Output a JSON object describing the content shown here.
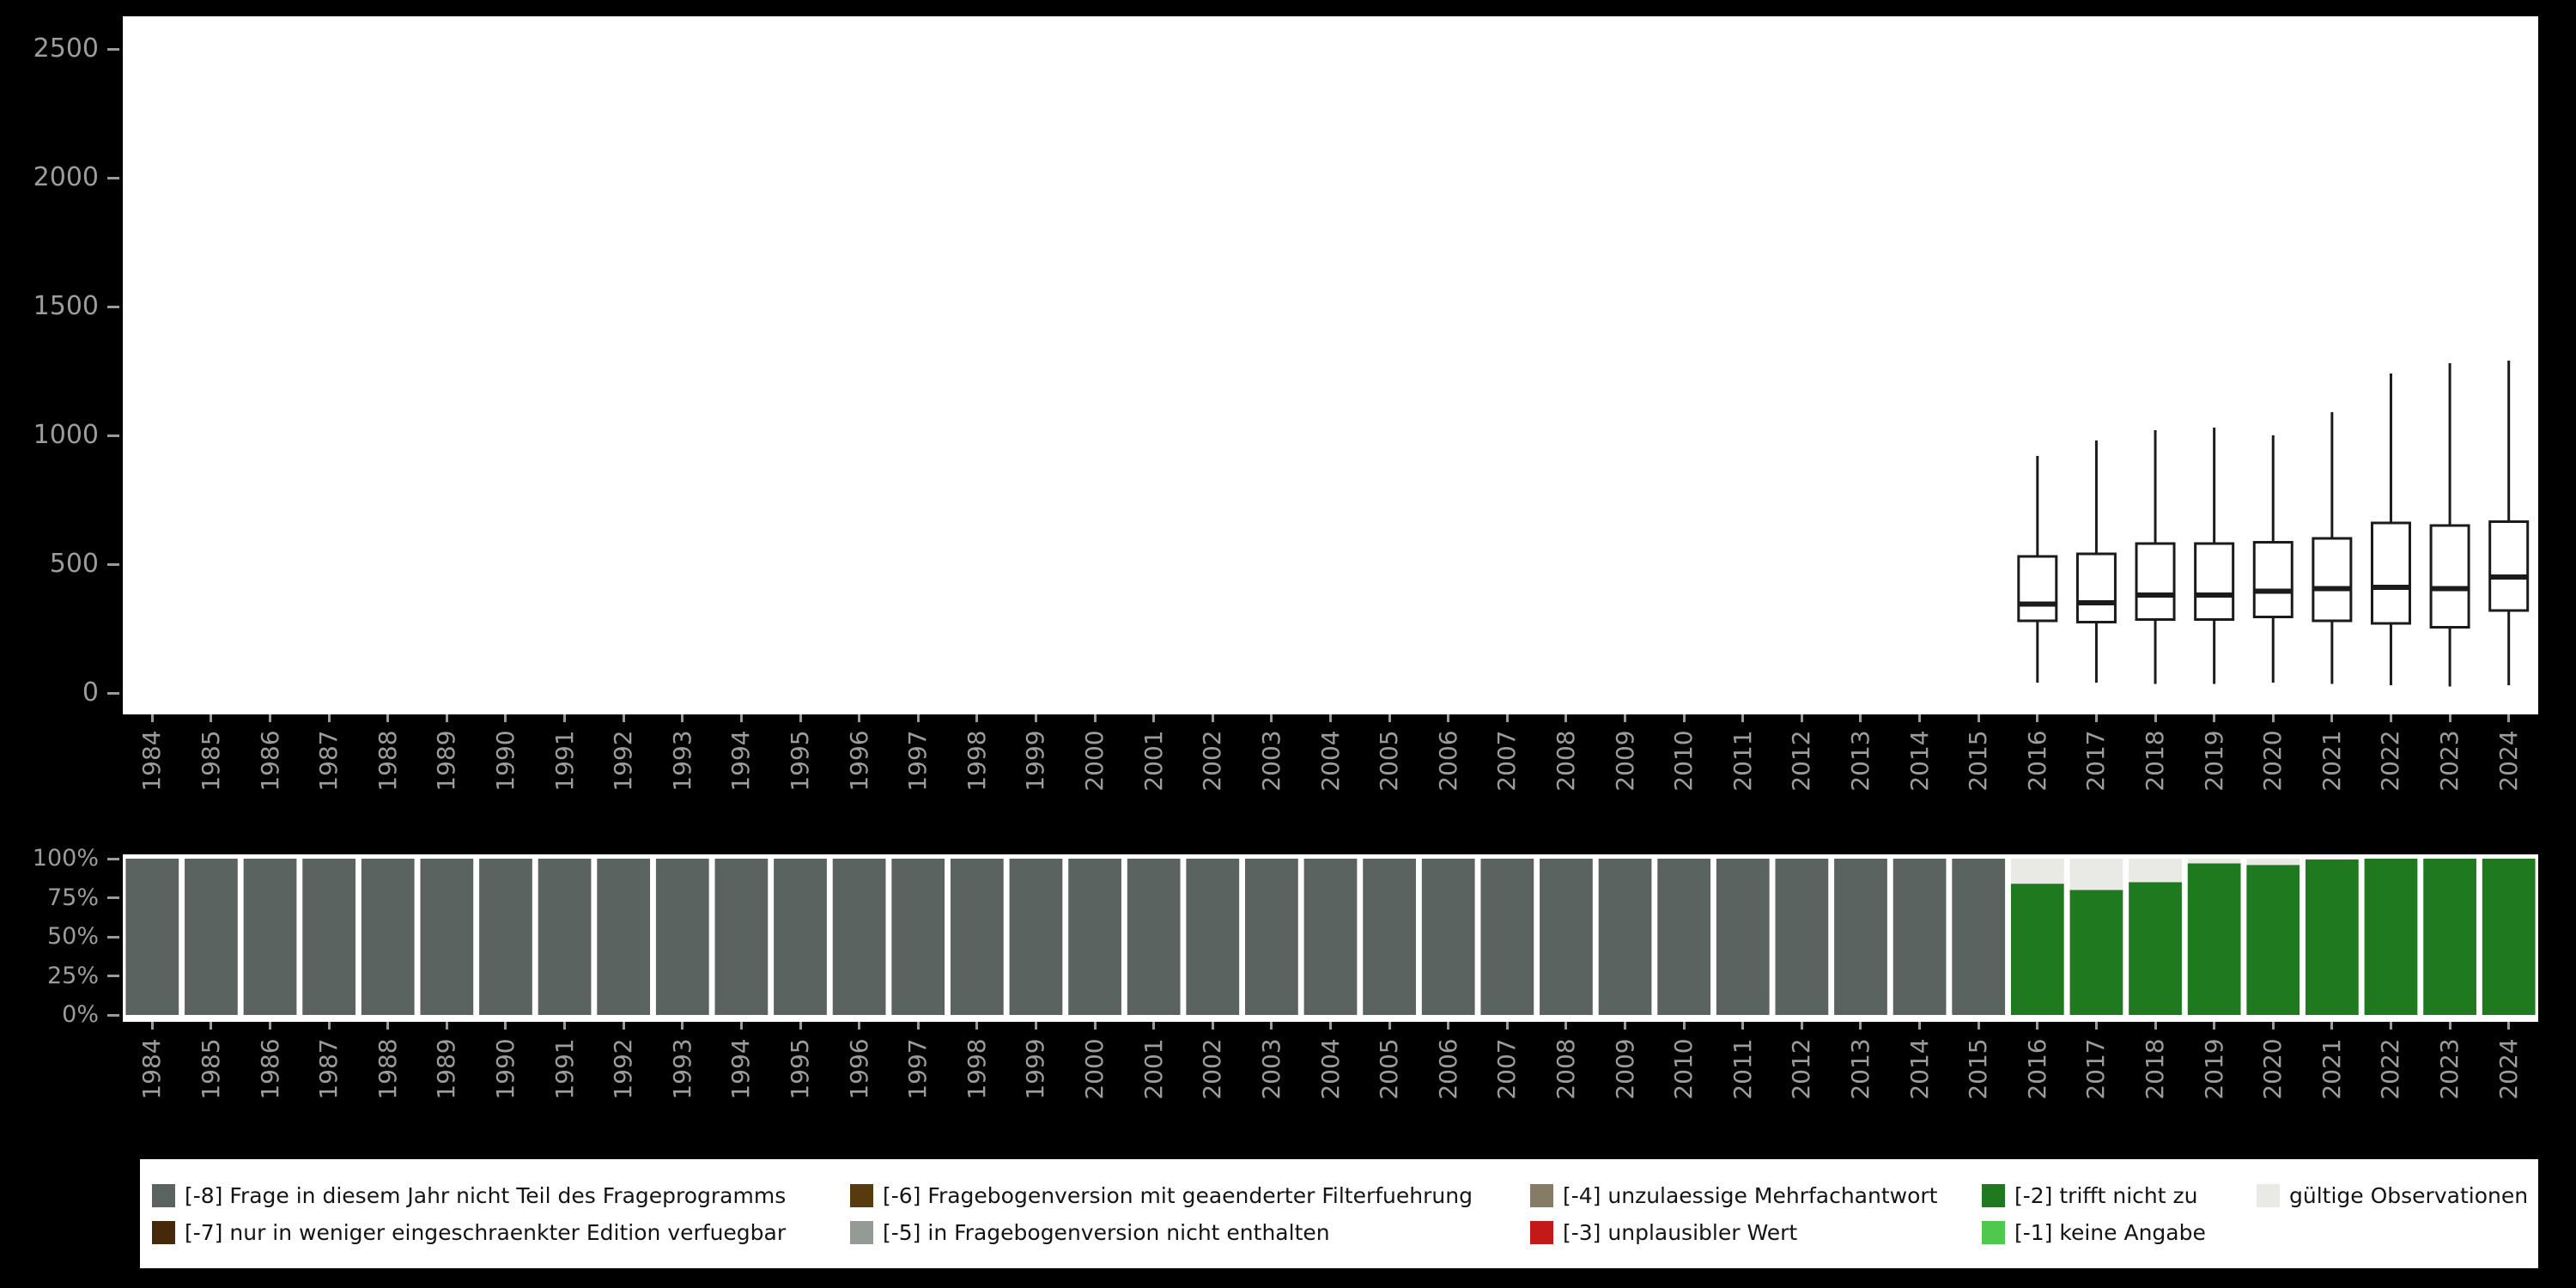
{
  "page": {
    "background": "#000000",
    "panel_background": "#ffffff",
    "axis_text_color": "#9c9c9c"
  },
  "chart_data": [
    {
      "type": "boxplot",
      "title": "",
      "xlabel": "",
      "ylabel": "",
      "ylim": [
        0,
        2500
      ],
      "yticks": [
        0,
        500,
        1000,
        1500,
        2000,
        2500
      ],
      "grid": false,
      "box_color": "#1b1b1b",
      "box_fill": "#ffffff",
      "categories": [
        "1984",
        "1985",
        "1986",
        "1987",
        "1988",
        "1989",
        "1990",
        "1991",
        "1992",
        "1993",
        "1994",
        "1995",
        "1996",
        "1997",
        "1998",
        "1999",
        "2000",
        "2001",
        "2002",
        "2003",
        "2004",
        "2005",
        "2006",
        "2007",
        "2008",
        "2009",
        "2010",
        "2011",
        "2012",
        "2013",
        "2014",
        "2015",
        "2016",
        "2017",
        "2018",
        "2019",
        "2020",
        "2021",
        "2022",
        "2023",
        "2024"
      ],
      "boxes": [
        {
          "year": "2016",
          "min": 40,
          "q1": 280,
          "median": 345,
          "q3": 530,
          "max": 920
        },
        {
          "year": "2017",
          "min": 40,
          "q1": 275,
          "median": 350,
          "q3": 540,
          "max": 980
        },
        {
          "year": "2018",
          "min": 35,
          "q1": 285,
          "median": 380,
          "q3": 580,
          "max": 1020
        },
        {
          "year": "2019",
          "min": 35,
          "q1": 285,
          "median": 380,
          "q3": 580,
          "max": 1030
        },
        {
          "year": "2020",
          "min": 40,
          "q1": 295,
          "median": 395,
          "q3": 585,
          "max": 1000
        },
        {
          "year": "2021",
          "min": 35,
          "q1": 280,
          "median": 405,
          "q3": 600,
          "max": 1090
        },
        {
          "year": "2022",
          "min": 30,
          "q1": 270,
          "median": 410,
          "q3": 660,
          "max": 1240
        },
        {
          "year": "2023",
          "min": 25,
          "q1": 255,
          "median": 405,
          "q3": 650,
          "max": 1280
        },
        {
          "year": "2024",
          "min": 30,
          "q1": 320,
          "median": 450,
          "q3": 665,
          "max": 1290
        }
      ]
    },
    {
      "type": "bar",
      "stacked": true,
      "percent": true,
      "title": "",
      "xlabel": "",
      "ylabel": "",
      "yticks": [
        "0%",
        "25%",
        "50%",
        "75%",
        "100%"
      ],
      "grid": false,
      "categories": [
        "1984",
        "1985",
        "1986",
        "1987",
        "1988",
        "1989",
        "1990",
        "1991",
        "1992",
        "1993",
        "1994",
        "1995",
        "1996",
        "1997",
        "1998",
        "1999",
        "2000",
        "2001",
        "2002",
        "2003",
        "2004",
        "2005",
        "2006",
        "2007",
        "2008",
        "2009",
        "2010",
        "2011",
        "2012",
        "2013",
        "2014",
        "2015",
        "2016",
        "2017",
        "2018",
        "2019",
        "2020",
        "2021",
        "2022",
        "2023",
        "2024"
      ],
      "series": [
        {
          "name": "[-8] Frage in diesem Jahr nicht Teil des Frageprogramms",
          "color": "#5a635f",
          "values": [
            1,
            1,
            1,
            1,
            1,
            1,
            1,
            1,
            1,
            1,
            1,
            1,
            1,
            1,
            1,
            1,
            1,
            1,
            1,
            1,
            1,
            1,
            1,
            1,
            1,
            1,
            1,
            1,
            1,
            1,
            1,
            1,
            0,
            0,
            0,
            0,
            0,
            0,
            0,
            0,
            0
          ]
        },
        {
          "name": "[-2] trifft nicht zu",
          "color": "#1f7a1f",
          "values": [
            0,
            0,
            0,
            0,
            0,
            0,
            0,
            0,
            0,
            0,
            0,
            0,
            0,
            0,
            0,
            0,
            0,
            0,
            0,
            0,
            0,
            0,
            0,
            0,
            0,
            0,
            0,
            0,
            0,
            0,
            0,
            0,
            0.84,
            0.8,
            0.85,
            0.97,
            0.96,
            0.995,
            1,
            1,
            1
          ]
        },
        {
          "name": "gültige Observationen",
          "color": "#e9e9e5",
          "values": [
            0,
            0,
            0,
            0,
            0,
            0,
            0,
            0,
            0,
            0,
            0,
            0,
            0,
            0,
            0,
            0,
            0,
            0,
            0,
            0,
            0,
            0,
            0,
            0,
            0,
            0,
            0,
            0,
            0,
            0,
            0,
            0,
            0.16,
            0.2,
            0.15,
            0.03,
            0.04,
            0.005,
            0,
            0,
            0
          ]
        }
      ]
    }
  ],
  "legend": {
    "items": [
      {
        "label": "[-8] Frage in diesem Jahr nicht Teil des Frageprogramms",
        "color": "#5a635f"
      },
      {
        "label": "[-6] Fragebogenversion mit geaenderter Filterfuehrung",
        "color": "#573a0e"
      },
      {
        "label": "[-4] unzulaessige Mehrfachantwort",
        "color": "#867b64"
      },
      {
        "label": "[-2] trifft nicht zu",
        "color": "#1f7a1f"
      },
      {
        "label": "gültige Observationen",
        "color": "#e9e9e5"
      },
      {
        "label": "[-7] nur in weniger eingeschraenkter Edition verfuegbar",
        "color": "#46290b"
      },
      {
        "label": "[-5] in Fragebogenversion nicht enthalten",
        "color": "#949b95"
      },
      {
        "label": "[-3] unplausibler Wert",
        "color": "#c41919"
      },
      {
        "label": "[-1] keine Angabe",
        "color": "#4ec94e"
      }
    ]
  }
}
